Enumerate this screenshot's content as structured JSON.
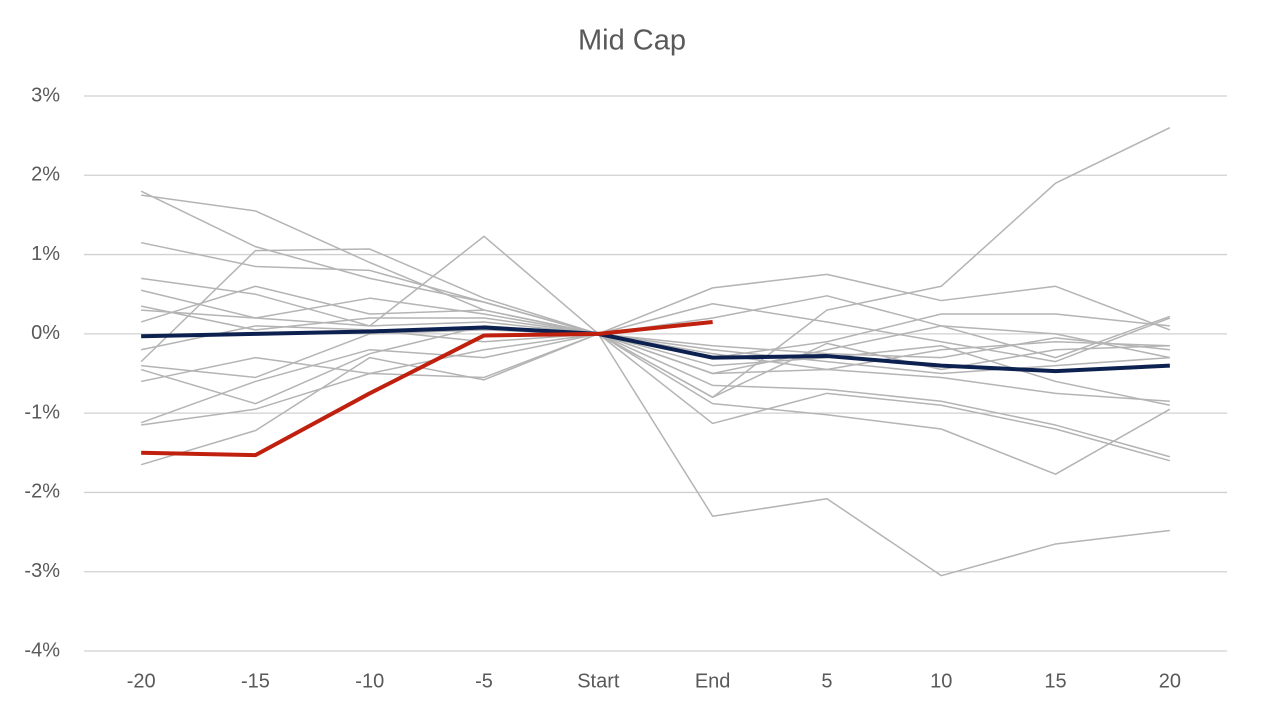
{
  "chart_data": {
    "type": "line",
    "title": "Mid Cap",
    "categories": [
      "-20",
      "-15",
      "-10",
      "-5",
      "Start",
      "End",
      "5",
      "10",
      "15",
      "20"
    ],
    "ylim": [
      -4,
      3
    ],
    "yticks": [
      {
        "value": 3,
        "label": "3%"
      },
      {
        "value": 2,
        "label": "2%"
      },
      {
        "value": 1,
        "label": "1%"
      },
      {
        "value": 0,
        "label": "0%"
      },
      {
        "value": -1,
        "label": "-1%"
      },
      {
        "value": -2,
        "label": "-2%"
      },
      {
        "value": -3,
        "label": "-3%"
      },
      {
        "value": -4,
        "label": "-4%"
      }
    ],
    "grid": true,
    "series": [
      {
        "color": "#b4b4b4",
        "values": [
          1.8,
          1.1,
          0.7,
          0.4,
          0,
          -0.8,
          0.3,
          0.6,
          1.9,
          2.6
        ]
      },
      {
        "color": "#b4b4b4",
        "values": [
          1.75,
          1.55,
          0.9,
          0.3,
          0,
          0.58,
          0.75,
          0.42,
          0.6,
          0.05
        ]
      },
      {
        "color": "#b4b4b4",
        "values": [
          1.15,
          0.85,
          0.8,
          0.4,
          0,
          -2.3,
          -2.08,
          -3.05,
          -2.65,
          -2.48
        ]
      },
      {
        "color": "#b4b4b4",
        "values": [
          0.7,
          0.5,
          0.1,
          1.23,
          0,
          0.38,
          0.15,
          -0.1,
          -0.35,
          0.2
        ]
      },
      {
        "color": "#b4b4b4",
        "values": [
          -0.35,
          1.05,
          1.07,
          0.45,
          0,
          -1.13,
          -0.75,
          -0.9,
          -1.2,
          -1.6
        ]
      },
      {
        "color": "#b4b4b4",
        "values": [
          -1.15,
          -0.95,
          -0.5,
          -0.55,
          0,
          -0.88,
          -1.02,
          -1.2,
          -1.77,
          -0.95
        ]
      },
      {
        "color": "#b4b4b4",
        "values": [
          -1.65,
          -1.22,
          -0.3,
          -0.58,
          0,
          -0.65,
          -0.7,
          -0.85,
          -1.15,
          -1.55
        ]
      },
      {
        "color": "#b4b4b4",
        "values": [
          -1.12,
          -0.6,
          -0.2,
          -0.3,
          0,
          -0.5,
          -0.45,
          -0.55,
          -0.75,
          -0.85
        ]
      },
      {
        "color": "#b4b4b4",
        "values": [
          0.55,
          0.2,
          0.45,
          0.25,
          0,
          -0.3,
          -0.1,
          0.25,
          0.25,
          0.1
        ]
      },
      {
        "color": "#b4b4b4",
        "values": [
          0.35,
          0.05,
          0.2,
          0.2,
          0,
          -0.15,
          -0.25,
          -0.3,
          -0.05,
          -0.2
        ]
      },
      {
        "color": "#b4b4b4",
        "values": [
          -0.45,
          -0.88,
          -0.25,
          0.1,
          0,
          0.2,
          0.48,
          0.1,
          0.0,
          -0.3
        ]
      },
      {
        "color": "#b4b4b4",
        "values": [
          -0.6,
          -0.3,
          -0.5,
          -0.2,
          0,
          -0.8,
          -0.12,
          -0.45,
          -0.2,
          -0.15
        ]
      },
      {
        "color": "#b4b4b4",
        "values": [
          0.15,
          0.6,
          0.25,
          0.3,
          0,
          -0.5,
          -0.2,
          0.1,
          -0.3,
          0.22
        ]
      },
      {
        "color": "#b4b4b4",
        "values": [
          -0.4,
          -0.55,
          0.0,
          0.05,
          0,
          -0.2,
          -0.35,
          -0.5,
          -0.4,
          -0.3
        ]
      },
      {
        "color": "#b4b4b4",
        "values": [
          0.3,
          0.2,
          0.1,
          0.15,
          0,
          -0.25,
          -0.45,
          -0.2,
          -0.1,
          -0.15
        ]
      },
      {
        "color": "#b4b4b4",
        "values": [
          -0.2,
          0.1,
          0.05,
          -0.1,
          0,
          -0.4,
          -0.3,
          -0.15,
          -0.6,
          -0.9
        ]
      },
      {
        "color": "#0d2150",
        "values": [
          -0.03,
          0.0,
          0.03,
          0.08,
          0,
          -0.3,
          -0.28,
          -0.4,
          -0.47,
          -0.4
        ]
      },
      {
        "color": "#c0200e",
        "values": [
          -1.5,
          -1.53,
          -0.75,
          -0.02,
          0,
          0.15,
          null,
          null,
          null,
          null
        ]
      }
    ]
  }
}
